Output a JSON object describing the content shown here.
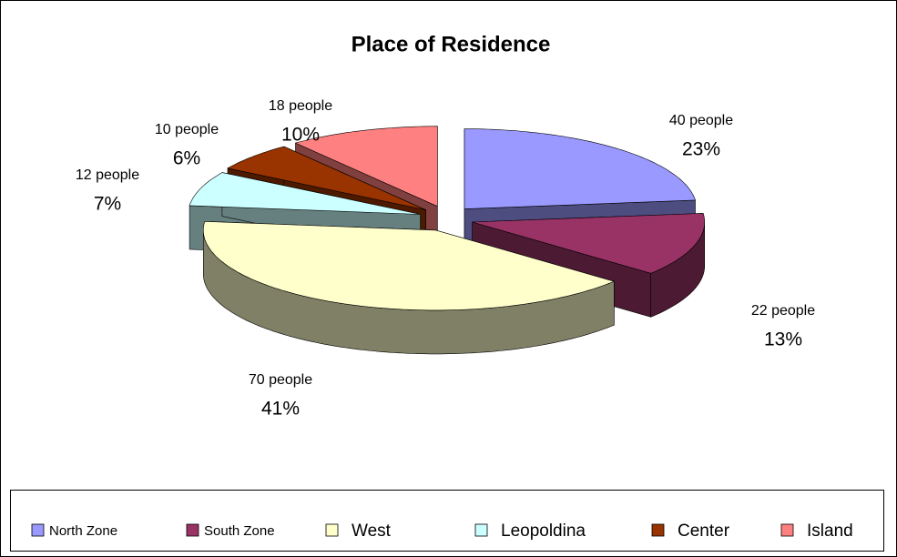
{
  "chart_data": {
    "type": "pie",
    "title": "Place of Residence",
    "categories": [
      "North Zone",
      "South Zone",
      "West",
      "Leopoldina",
      "Center",
      "Island"
    ],
    "values": [
      40,
      22,
      70,
      12,
      10,
      18
    ],
    "value_labels": [
      "40 people",
      "22 people",
      "70 people",
      "12 people",
      "10 people",
      "18 people"
    ],
    "percentages": [
      23,
      13,
      41,
      7,
      6,
      10
    ],
    "percentage_labels": [
      "23%",
      "13%",
      "41%",
      "7%",
      "6%",
      "10%"
    ],
    "colors": [
      "#9999ff",
      "#993366",
      "#ffffcc",
      "#ccffff",
      "#993300",
      "#ff8080"
    ],
    "legend": "bottom"
  }
}
